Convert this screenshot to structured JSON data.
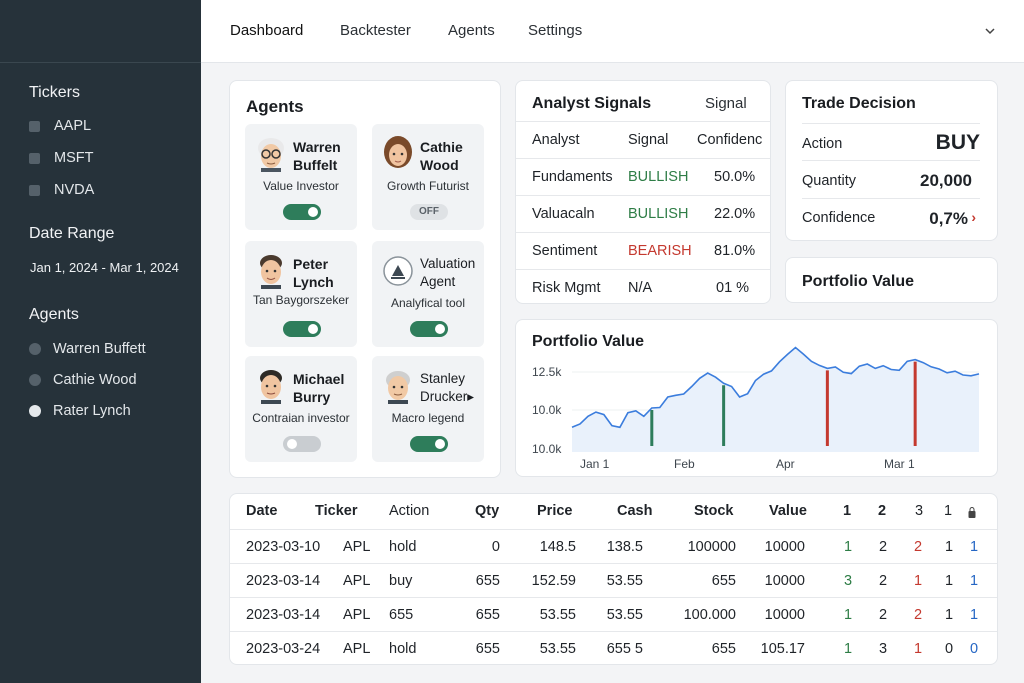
{
  "sidebar": {
    "tickers_heading": "Tickers",
    "tickers": [
      "AAPL",
      "MSFT",
      "NVDA"
    ],
    "date_heading": "Date Range",
    "date_range": "Jan 1, 2024 - Mar 1, 2024",
    "agents_heading": "Agents",
    "agents": [
      {
        "label": "Warren Buffett",
        "selected": false
      },
      {
        "label": "Cathie Wood",
        "selected": false
      },
      {
        "label": "Rater Lynch",
        "selected": true
      }
    ]
  },
  "nav": {
    "items": [
      "Dashboard",
      "Backtester",
      "Agents",
      "Settings"
    ],
    "active": "Dashboard",
    "menu_icon": "chevron-down-icon"
  },
  "agents_card": {
    "title": "Agents",
    "agents": [
      {
        "name_line1": "Warren",
        "name_line2": "Buffelt",
        "role": "Value Investor",
        "toggle": "on"
      },
      {
        "name_line1": "Cathie",
        "name_line2": "Wood",
        "role": "Growth Futurist",
        "toggle": "off",
        "toggle_label": "OFF"
      },
      {
        "name_line1": "Peter",
        "name_line2": "Lynch",
        "role": "Tan Baygorszeker",
        "toggle": "on"
      },
      {
        "name_line1": "Valuation",
        "name_line2": "Agent",
        "role": "Analyfical tool",
        "toggle": "on",
        "icon": "valuation-icon"
      },
      {
        "name_line1": "Michael",
        "name_line2": "Burry",
        "role": "Contraian investor",
        "toggle": "gray"
      },
      {
        "name_line1": "Stanley",
        "name_line2": "Drucker▸",
        "role": "Macro legend",
        "toggle": "on"
      }
    ]
  },
  "signals": {
    "title": "Analyst Signals",
    "title_right": "Signal",
    "headers": [
      "Analyst",
      "Signal",
      "Confidenc"
    ],
    "rows": [
      {
        "analyst": "Fundaments",
        "signal": "BULLISH",
        "confidence": "50.0%",
        "tone": "bull"
      },
      {
        "analyst": "Valuacaln",
        "signal": "BULLISH",
        "confidence": "22.0%",
        "tone": "bull"
      },
      {
        "analyst": "Sentiment",
        "signal": "BEARISH",
        "confidence": "81.0%",
        "tone": "bear"
      },
      {
        "analyst": "Risk Mgmt",
        "signal": "N/A",
        "confidence": "01 %",
        "tone": "na"
      }
    ]
  },
  "trade": {
    "title": "Trade Decision",
    "rows": [
      {
        "label": "Action",
        "value": "BUY"
      },
      {
        "label": "Quantity",
        "value": "20,000"
      },
      {
        "label": "Confidence",
        "value": "0,7%",
        "marker": "›"
      }
    ]
  },
  "portfolio_small": {
    "title": "Portfolio Value"
  },
  "chart_data": {
    "type": "line",
    "title": "Portfolio Value",
    "y_ticks": [
      "12.5k",
      "10.0k",
      "10.0k"
    ],
    "x_ticks": [
      "Jan 1",
      "Feb",
      "Apr",
      "Mar 1"
    ],
    "ylim": [
      9500,
      13500
    ],
    "y_values": [
      10400,
      10520,
      10800,
      10950,
      10860,
      10460,
      10400,
      10930,
      11000,
      10800,
      11100,
      11120,
      11500,
      11560,
      11610,
      11880,
      12180,
      12370,
      12220,
      12000,
      11880,
      11500,
      11620,
      12100,
      12330,
      12450,
      12780,
      13050,
      13300,
      13060,
      12800,
      12650,
      12540,
      12590,
      12400,
      12350,
      12620,
      12700,
      12540,
      12640,
      12500,
      12470,
      12800,
      12860,
      12750,
      12600,
      12520,
      12380,
      12440,
      12300,
      12270,
      12340
    ],
    "markers": [
      {
        "index": 10,
        "signal": "buy",
        "color": "#2e7d5b"
      },
      {
        "index": 19,
        "signal": "buy",
        "color": "#2e7d5b"
      },
      {
        "index": 32,
        "signal": "sell",
        "color": "#c4392f"
      },
      {
        "index": 43,
        "signal": "sell",
        "color": "#c4392f"
      }
    ],
    "line_color": "#3b7ddd",
    "fill_color": "#e9f1fb"
  },
  "trades": {
    "headers": [
      "Date",
      "Ticker",
      "Action",
      "Qty",
      "Price",
      "Cash",
      "Stock",
      "Value",
      "1",
      "2",
      "3",
      "1"
    ],
    "last_header_icon": "lock-icon",
    "rows": [
      {
        "date": "2023-03-10",
        "ticker": "APL",
        "action": "hold",
        "qty": "0",
        "price": "148.5",
        "cash": "138.5",
        "stock": "100000",
        "value": "10000",
        "c1": "1",
        "c2": "2",
        "c3": "2",
        "c4": "1",
        "c5": "1"
      },
      {
        "date": "2023-03-14",
        "ticker": "APL",
        "action": "buy",
        "qty": "655",
        "price": "152.59",
        "cash": "53.55",
        "stock": "655",
        "value": "10000",
        "c1": "3",
        "c2": "2",
        "c3": "1",
        "c4": "1",
        "c5": "1"
      },
      {
        "date": "2023-03-14",
        "ticker": "APL",
        "action": "655",
        "qty": "655",
        "price": "53.55",
        "cash": "53.55",
        "stock": "100.000",
        "value": "10000",
        "c1": "1",
        "c2": "2",
        "c3": "2",
        "c4": "1",
        "c5": "1"
      },
      {
        "date": "2023-03-24",
        "ticker": "APL",
        "action": "hold",
        "qty": "655",
        "price": "53.55",
        "cash": "655 5",
        "stock": "655",
        "value": "105.17",
        "c1": "1",
        "c2": "3",
        "c3": "1",
        "c4": "0",
        "c5": "0"
      }
    ]
  }
}
